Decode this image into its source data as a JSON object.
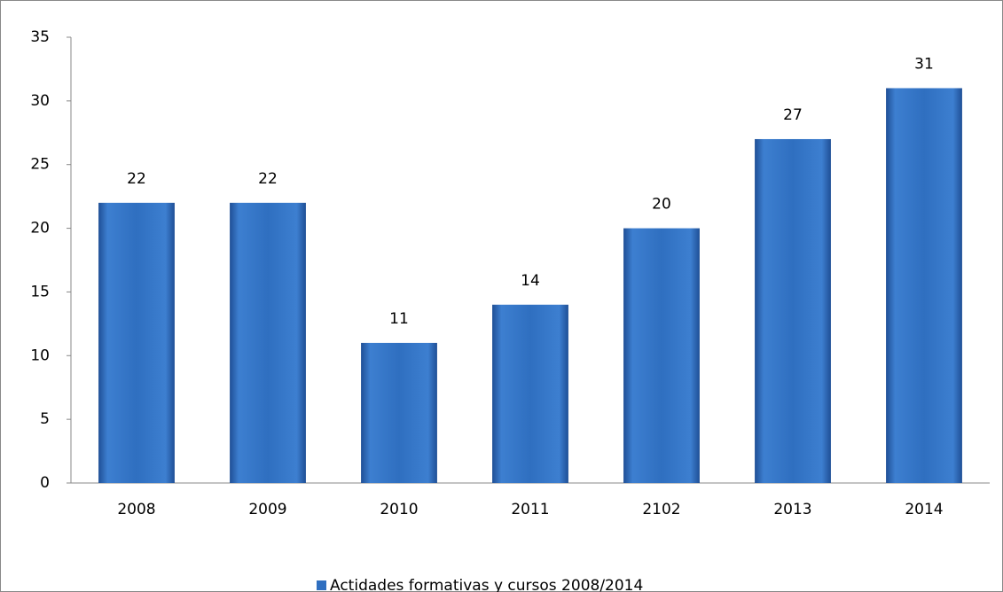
{
  "chart_data": {
    "type": "bar",
    "categories": [
      "2008",
      "2009",
      "2010",
      "2011",
      "2102",
      "2013",
      "2014"
    ],
    "series": [
      {
        "name": "Actidades formativas y cursos 2008/2014",
        "color": "#2f6fc0",
        "values": [
          22,
          22,
          11,
          14,
          20,
          27,
          31
        ]
      }
    ],
    "ylim": [
      0,
      35
    ],
    "yticks": [
      0,
      5,
      10,
      15,
      20,
      25,
      30,
      35
    ],
    "grid": false,
    "legend": "bottom"
  }
}
